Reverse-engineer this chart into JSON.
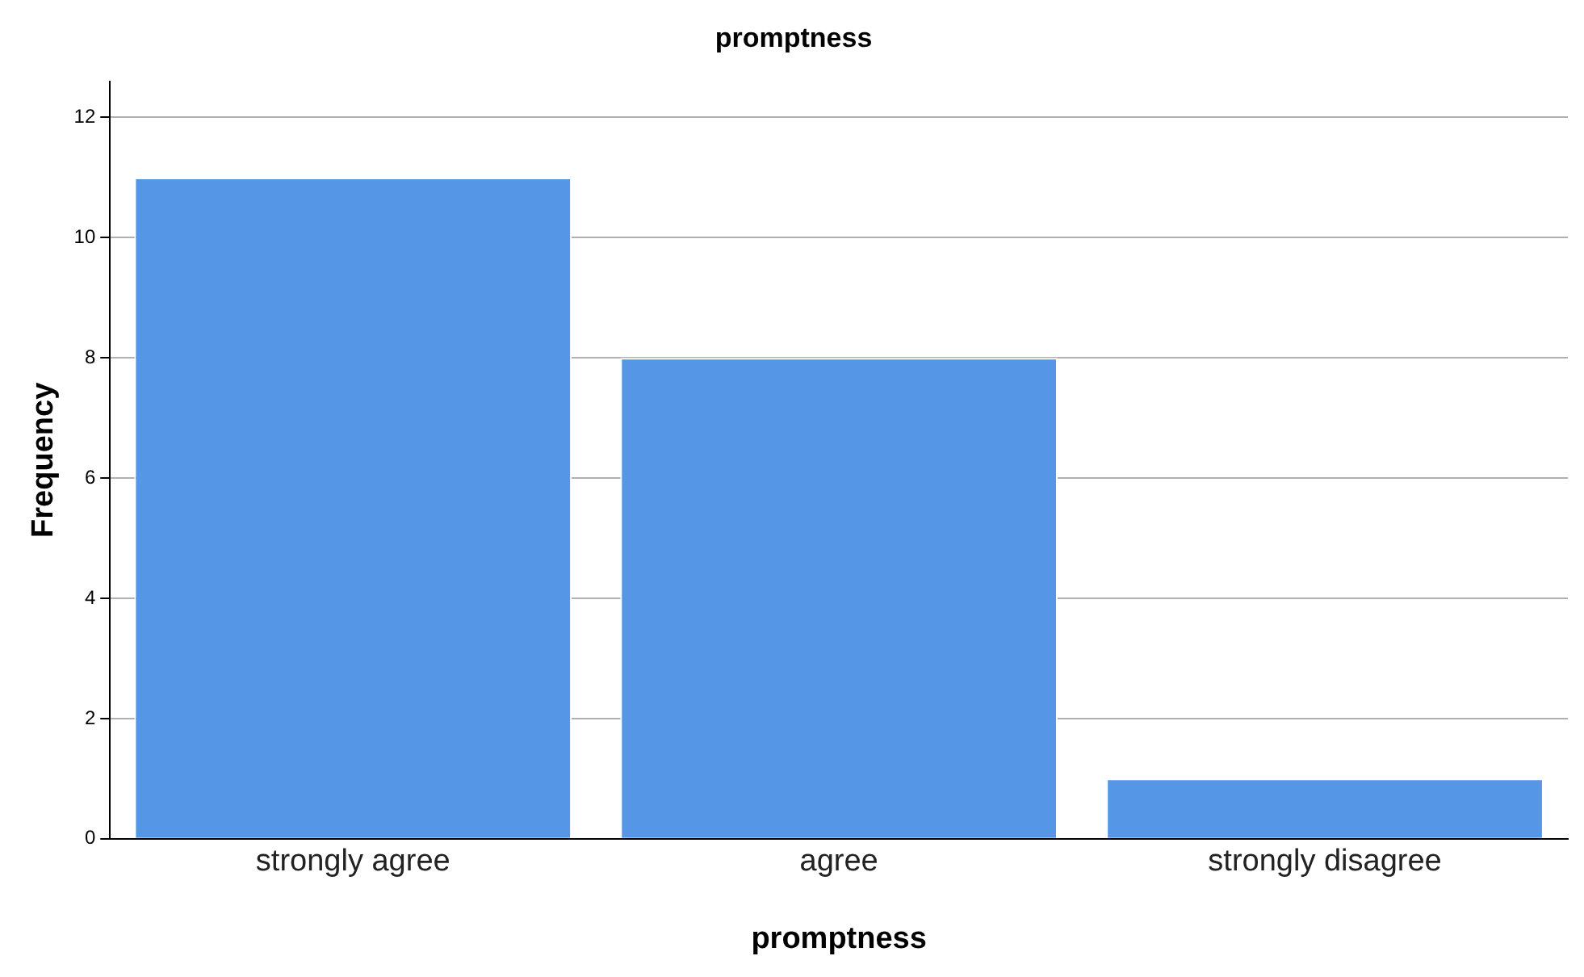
{
  "chart_data": {
    "type": "bar",
    "title": "promptness",
    "xlabel": "promptness",
    "ylabel": "Frequency",
    "categories": [
      "strongly agree",
      "agree",
      "strongly disagree"
    ],
    "values": [
      11,
      8,
      1
    ],
    "color": "#5596e6",
    "ylim": [
      0,
      12.6
    ],
    "yticks": [
      0,
      2,
      4,
      6,
      8,
      10,
      12
    ],
    "grid": "y",
    "legend": false
  }
}
